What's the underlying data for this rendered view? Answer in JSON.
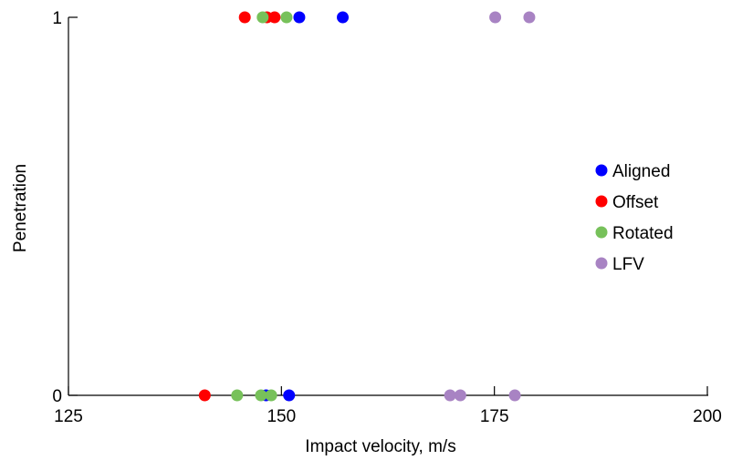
{
  "chart_data": {
    "type": "scatter",
    "title": "",
    "xlabel": "Impact velocity, m/s",
    "ylabel": "Penetration",
    "xlim": [
      125,
      200
    ],
    "ylim": [
      0,
      1
    ],
    "x_ticks": [
      "125",
      "150",
      "175",
      "200"
    ],
    "y_ticks": [
      "0",
      "1"
    ],
    "grid": false,
    "legend": "right",
    "series": [
      {
        "name": "Aligned",
        "color": "#0000ff",
        "points": [
          [
            152.1,
            1
          ],
          [
            157.2,
            1
          ],
          [
            148.2,
            0
          ],
          [
            150.9,
            0
          ]
        ]
      },
      {
        "name": "Offset",
        "color": "#ff0000",
        "points": [
          [
            145.7,
            1
          ],
          [
            148.3,
            1
          ],
          [
            149.2,
            1
          ],
          [
            141.0,
            0
          ]
        ]
      },
      {
        "name": "Rotated",
        "color": "#77c15a",
        "points": [
          [
            147.8,
            1
          ],
          [
            150.6,
            1
          ],
          [
            144.8,
            0
          ],
          [
            147.6,
            0
          ],
          [
            148.8,
            0
          ]
        ]
      },
      {
        "name": "LFV",
        "color": "#a883c3",
        "points": [
          [
            175.1,
            1
          ],
          [
            179.1,
            1
          ],
          [
            169.8,
            0
          ],
          [
            171.0,
            0
          ],
          [
            177.4,
            0
          ]
        ]
      }
    ]
  }
}
